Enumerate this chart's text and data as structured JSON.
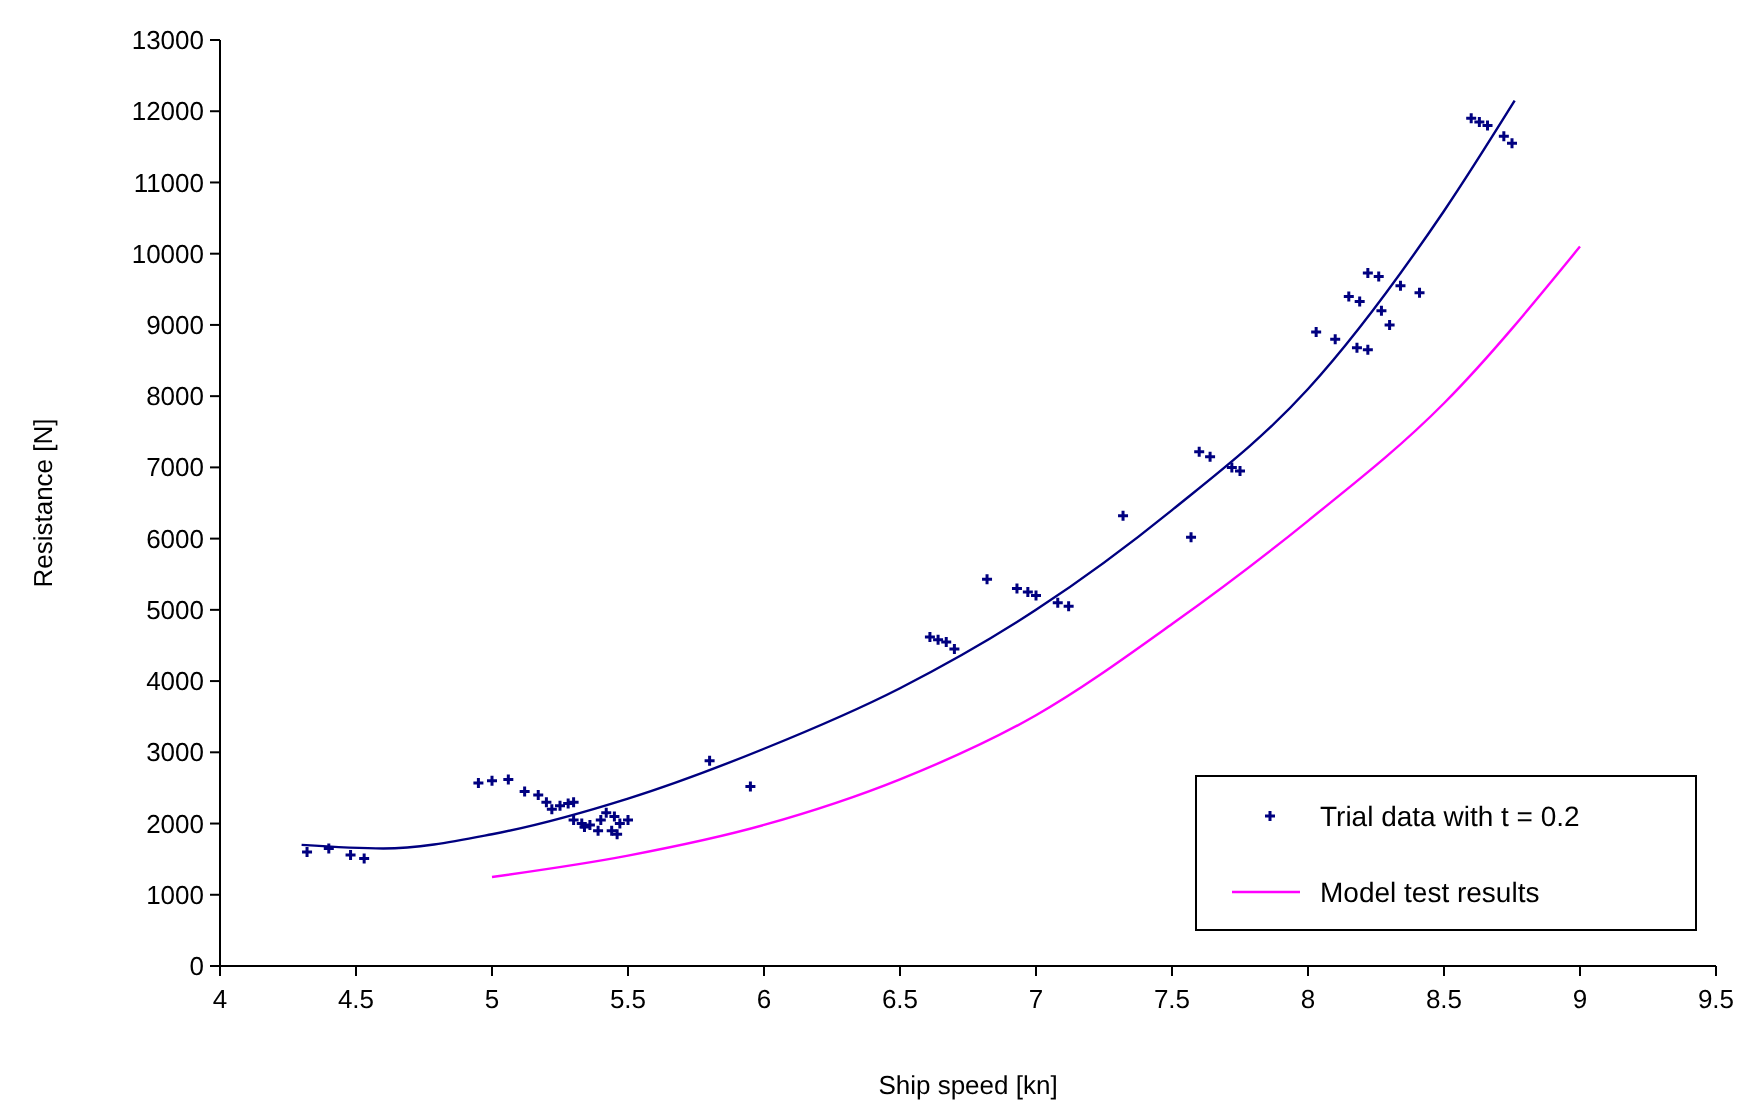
{
  "chart_data": {
    "type": "scatter",
    "xlabel": "Ship speed [kn]",
    "ylabel": "Resistance [N]",
    "xlim": [
      4,
      9.5
    ],
    "xticks": [
      4,
      4.5,
      5,
      5.5,
      6,
      6.5,
      7,
      7.5,
      8,
      8.5,
      9,
      9.5
    ],
    "ylim": [
      0,
      13000
    ],
    "yticks": [
      0,
      1000,
      2000,
      3000,
      4000,
      5000,
      6000,
      7000,
      8000,
      9000,
      10000,
      11000,
      12000,
      13000
    ],
    "grid": false,
    "legend": "bottom right",
    "marker": "cross",
    "series": [
      {
        "name": "Trial data with t = 0.2",
        "color": "#000080",
        "x": [
          4.32,
          4.4,
          4.48,
          4.53,
          4.95,
          5.0,
          5.06,
          5.12,
          5.17,
          5.2,
          5.22,
          5.25,
          5.28,
          5.3,
          5.33,
          5.36,
          5.4,
          5.42,
          5.44,
          5.45,
          5.47,
          5.5,
          5.3,
          5.34,
          5.39,
          5.46,
          5.8,
          5.95,
          6.61,
          6.64,
          6.67,
          6.7,
          6.82,
          6.93,
          6.97,
          7.0,
          7.08,
          7.12,
          7.32,
          7.57,
          7.6,
          7.64,
          7.72,
          7.75,
          8.03,
          8.1,
          8.18,
          8.22,
          8.15,
          8.19,
          8.27,
          8.3,
          8.22,
          8.26,
          8.34,
          8.41,
          8.6,
          8.63,
          8.66,
          8.72,
          8.75
        ],
        "values": [
          1600,
          1650,
          1560,
          1510,
          2570,
          2600,
          2620,
          2450,
          2400,
          2300,
          2200,
          2250,
          2280,
          2050,
          2000,
          1980,
          2050,
          2150,
          1900,
          2100,
          2000,
          2050,
          2300,
          1950,
          1900,
          1850,
          2880,
          2520,
          4620,
          4580,
          4550,
          4450,
          5430,
          5300,
          5250,
          5200,
          5100,
          5050,
          6320,
          6020,
          7220,
          7150,
          7000,
          6950,
          8900,
          8800,
          8680,
          8650,
          9400,
          9330,
          9200,
          9000,
          9730,
          9680,
          9550,
          9450,
          11900,
          11850,
          11800,
          11650,
          11550
        ]
      },
      {
        "type": "line",
        "marker": "none",
        "color": "#000080",
        "x": [
          4.3,
          4.6,
          5.0,
          5.5,
          6.0,
          6.5,
          7.0,
          7.5,
          8.0,
          8.5,
          8.76
        ],
        "values": [
          1700,
          1650,
          1850,
          2350,
          3050,
          3900,
          5000,
          6400,
          8100,
          10600,
          12150
        ]
      },
      {
        "name": "Model test results",
        "type": "line",
        "marker": "none",
        "color": "#ff00ff",
        "x": [
          5.0,
          5.5,
          6.0,
          6.5,
          7.0,
          7.5,
          8.0,
          8.5,
          9.0
        ],
        "values": [
          1250,
          1550,
          1980,
          2620,
          3520,
          4800,
          6250,
          7900,
          10100
        ]
      }
    ]
  }
}
